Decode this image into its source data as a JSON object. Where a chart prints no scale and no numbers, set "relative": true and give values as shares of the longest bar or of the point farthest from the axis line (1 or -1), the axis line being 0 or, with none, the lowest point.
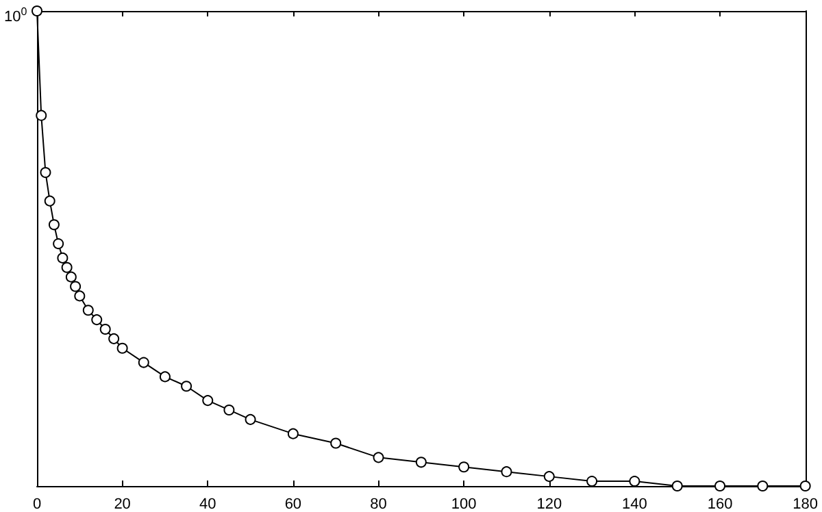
{
  "chart_data": {
    "type": "line",
    "relative": true,
    "grid": false,
    "marker": "circle",
    "line_style": "solid",
    "xlim": [
      0,
      180
    ],
    "xticks": [
      0,
      20,
      40,
      60,
      80,
      100,
      120,
      140,
      160,
      180
    ],
    "annotations": [
      "10$^{0}$"
    ],
    "series": [
      {
        "color": "#000000",
        "x": [
          0,
          1,
          2,
          3,
          4,
          5,
          6,
          7,
          8,
          9,
          10,
          12,
          14,
          16,
          18,
          20,
          25,
          30,
          35,
          40,
          45,
          50,
          60,
          70,
          80,
          90,
          100,
          110,
          120,
          130,
          140,
          150,
          160,
          170,
          180
        ],
        "values": [
          1,
          0.78,
          0.66,
          0.6,
          0.55,
          0.51,
          0.48,
          0.46,
          0.44,
          0.42,
          0.4,
          0.37,
          0.35,
          0.33,
          0.31,
          0.29,
          0.26,
          0.23,
          0.21,
          0.18,
          0.16,
          0.14,
          0.11,
          0.09,
          0.06,
          0.05,
          0.04,
          0.03,
          0.02,
          0.01,
          0.01,
          0,
          0,
          0,
          0
        ]
      }
    ]
  }
}
